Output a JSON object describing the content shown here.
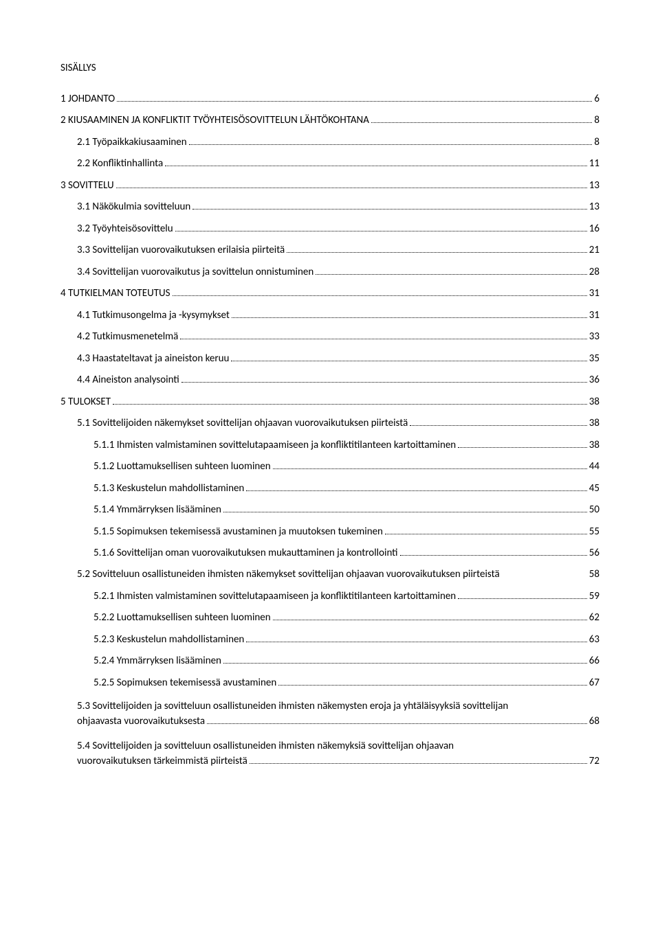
{
  "title": "SISÄLLYS",
  "toc": [
    {
      "level": 1,
      "label": "1 JOHDANTO",
      "page": "6"
    },
    {
      "level": 1,
      "label": "2 KIUSAAMINEN JA KONFLIKTIT TYÖYHTEISÖSOVITTELUN LÄHTÖKOHTANA",
      "page": "8"
    },
    {
      "level": 2,
      "label": "2.1 Työpaikkakiusaaminen",
      "page": "8"
    },
    {
      "level": 2,
      "label": "2.2 Konfliktinhallinta",
      "page": "11"
    },
    {
      "level": 1,
      "label": "3 SOVITTELU",
      "page": "13"
    },
    {
      "level": 2,
      "label": "3.1 Näkökulmia sovitteluun",
      "page": "13"
    },
    {
      "level": 2,
      "label": "3.2 Työyhteisösovittelu",
      "page": "16"
    },
    {
      "level": 2,
      "label": "3.3 Sovittelijan vuorovaikutuksen erilaisia piirteitä",
      "page": "21"
    },
    {
      "level": 2,
      "label": "3.4 Sovittelijan vuorovaikutus ja sovittelun onnistuminen",
      "page": "28"
    },
    {
      "level": 1,
      "label": "4 TUTKIELMAN TOTEUTUS",
      "page": "31"
    },
    {
      "level": 2,
      "label": "4.1 Tutkimusongelma ja -kysymykset",
      "page": "31"
    },
    {
      "level": 2,
      "label": "4.2 Tutkimusmenetelmä",
      "page": "33"
    },
    {
      "level": 2,
      "label": "4.3 Haastateltavat ja aineiston keruu",
      "page": "35"
    },
    {
      "level": 2,
      "label": "4.4 Aineiston analysointi",
      "page": "36"
    },
    {
      "level": 1,
      "label": "5 TULOKSET",
      "page": "38"
    },
    {
      "level": 2,
      "label": "5.1 Sovittelijoiden näkemykset sovittelijan ohjaavan vuorovaikutuksen piirteistä",
      "page": "38"
    },
    {
      "level": 3,
      "label": "5.1.1 Ihmisten valmistaminen sovittelutapaamiseen ja konfliktitilanteen kartoittaminen",
      "page": "38"
    },
    {
      "level": 3,
      "label": "5.1.2 Luottamuksellisen suhteen luominen",
      "page": "44"
    },
    {
      "level": 3,
      "label": "5.1.3 Keskustelun mahdollistaminen",
      "page": "45"
    },
    {
      "level": 3,
      "label": "5.1.4 Ymmärryksen lisääminen",
      "page": "50"
    },
    {
      "level": 3,
      "label": "5.1.5 Sopimuksen tekemisessä avustaminen ja muutoksen tukeminen",
      "page": "55"
    },
    {
      "level": 3,
      "label": "5.1.6 Sovittelijan oman vuorovaikutuksen mukauttaminen ja kontrollointi",
      "page": "56"
    },
    {
      "level": 2,
      "label": "5.2 Sovitteluun osallistuneiden ihmisten näkemykset sovittelijan ohjaavan vuorovaikutuksen piirteistä",
      "page": "58",
      "noleader": true
    },
    {
      "level": 3,
      "label": "5.2.1 Ihmisten valmistaminen sovittelutapaamiseen ja konfliktitilanteen kartoittaminen",
      "page": "59"
    },
    {
      "level": 3,
      "label": "5.2.2 Luottamuksellisen suhteen luominen",
      "page": "62"
    },
    {
      "level": 3,
      "label": "5.2.3 Keskustelun mahdollistaminen",
      "page": "63"
    },
    {
      "level": 3,
      "label": "5.2.4 Ymmärryksen lisääminen",
      "page": "66"
    },
    {
      "level": 3,
      "label": "5.2.5 Sopimuksen tekemisessä avustaminen",
      "page": "67"
    },
    {
      "level": 2,
      "wrap": true,
      "line1": "5.3 Sovittelijoiden ja sovitteluun osallistuneiden ihmisten näkemysten eroja ja yhtäläisyyksiä sovittelijan",
      "line2": "ohjaavasta vuorovaikutuksesta",
      "page": "68"
    },
    {
      "level": 2,
      "wrap": true,
      "line1": "5.4 Sovittelijoiden ja sovitteluun osallistuneiden ihmisten näkemyksiä sovittelijan ohjaavan",
      "line2": "vuorovaikutuksen tärkeimmistä piirteistä",
      "page": "72"
    }
  ]
}
